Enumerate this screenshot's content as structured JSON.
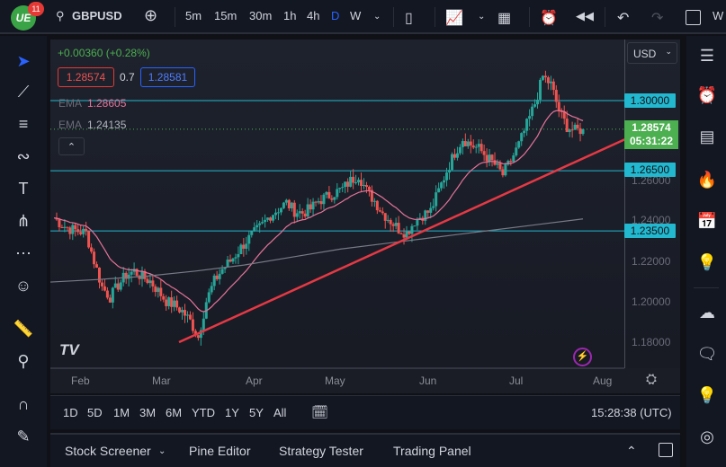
{
  "toolbar": {
    "notifications": "11",
    "logo": "UE",
    "symbol": "GBPUSD",
    "timeframes": [
      "5m",
      "15m",
      "30m",
      "1h",
      "4h",
      "D",
      "W"
    ],
    "active_timeframe": "D",
    "extra": "W"
  },
  "legend": {
    "change": "+0.00360 (+0.28%)",
    "bid": "1.28574",
    "spread": "0.7",
    "ask": "1.28581",
    "ema1_label": "EMA",
    "ema1_value": "1.28605",
    "ema2_label": "EMA",
    "ema2_value": "1.24135"
  },
  "currency": "USD",
  "price_axis": {
    "ticks": [
      "1.26000",
      "1.24000",
      "1.22000",
      "1.20000",
      "1.18000"
    ],
    "levels": [
      "1.30000",
      "1.26500",
      "1.23500"
    ],
    "current_price": "1.28574",
    "countdown": "05:31:22"
  },
  "time_axis": [
    "Feb",
    "Mar",
    "Apr",
    "May",
    "Jun",
    "Jul",
    "Aug"
  ],
  "ranges": [
    "1D",
    "5D",
    "1M",
    "3M",
    "6M",
    "YTD",
    "1Y",
    "5Y",
    "All"
  ],
  "clock": "15:28:38 (UTC)",
  "panel_tabs": [
    "Stock Screener",
    "Pine Editor",
    "Strategy Tester",
    "Trading Panel"
  ],
  "colors": {
    "up": "#26a69a",
    "down": "#ef5350",
    "ema_fast": "#e57399",
    "ema_slow": "#787b86",
    "level": "#22b8cf",
    "trendline": "#e53945",
    "current": "#4caf50"
  },
  "chart_data": {
    "type": "candlestick",
    "ylim": [
      1.17,
      1.32
    ],
    "closes": [
      1.2415,
      1.238,
      1.236,
      1.235,
      1.234,
      1.22,
      1.207,
      1.202,
      1.208,
      1.213,
      1.215,
      1.212,
      1.21,
      1.205,
      1.2,
      1.198,
      1.195,
      1.19,
      1.182,
      1.2,
      1.21,
      1.216,
      1.22,
      1.225,
      1.23,
      1.234,
      1.238,
      1.243,
      1.246,
      1.249,
      1.245,
      1.244,
      1.246,
      1.25,
      1.252,
      1.254,
      1.256,
      1.26,
      1.263,
      1.255,
      1.25,
      1.244,
      1.24,
      1.236,
      1.234,
      1.24,
      1.243,
      1.245,
      1.255,
      1.265,
      1.274,
      1.281,
      1.278,
      1.276,
      1.272,
      1.268,
      1.263,
      1.27,
      1.278,
      1.288,
      1.2985,
      1.312,
      1.308,
      1.295,
      1.287,
      1.285,
      1.2857
    ],
    "ema_slow": [
      1.2095,
      1.2108,
      1.2125,
      1.215,
      1.218,
      1.222,
      1.226,
      1.229,
      1.232,
      1.235,
      1.238,
      1.241
    ]
  }
}
